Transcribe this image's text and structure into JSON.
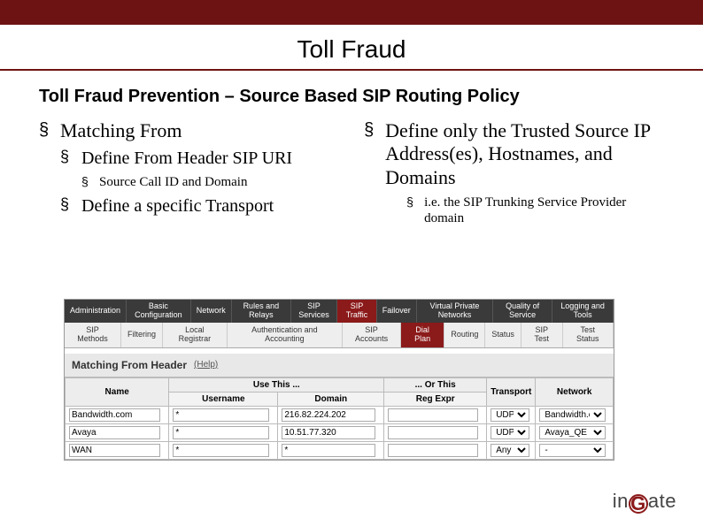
{
  "colors": {
    "brand_dark_red": "#6e1313",
    "tab_active": "#8b1a1a",
    "tab_bg": "#3a3a3a",
    "border": "#bbbbbb"
  },
  "title": "Toll Fraud",
  "subtitle": "Toll Fraud Prevention – Source Based SIP Routing Policy",
  "left": {
    "h1": "Matching From",
    "sub1": "Define From Header SIP URI",
    "sub1a": "Source Call ID and Domain",
    "sub2": "Define a specific Transport"
  },
  "right": {
    "h1": "Define only the Trusted Source IP Address(es), Hostnames, and Domains",
    "sub1": "i.e. the SIP Trunking Service Provider domain"
  },
  "tabs": [
    "Administration",
    "Basic Configuration",
    "Network",
    "Rules and Relays",
    "SIP Services",
    "SIP Traffic",
    "Failover",
    "Virtual Private Networks",
    "Quality of Service",
    "Logging and Tools"
  ],
  "active_tab_index": 5,
  "subtabs": [
    "SIP Methods",
    "Filtering",
    "Local Registrar",
    "Authentication and Accounting",
    "SIP Accounts",
    "Dial Plan",
    "Routing",
    "Status",
    "SIP Test",
    "Test Status"
  ],
  "active_subtab_index": 5,
  "section": {
    "title": "Matching From Header",
    "help": "(Help)"
  },
  "table": {
    "group_headers": {
      "use_this": "Use This ...",
      "or_this": "... Or This"
    },
    "columns": [
      "Name",
      "Username",
      "Domain",
      "Reg Expr",
      "Transport",
      "Network"
    ],
    "rows": [
      {
        "name": "Bandwidth.com",
        "user": "*",
        "domain": "216.82.224.202",
        "reg": "",
        "transport": "UDP",
        "network": "Bandwidth.com"
      },
      {
        "name": "Avaya",
        "user": "*",
        "domain": "10.51.77.320",
        "reg": "",
        "transport": "UDP",
        "network": "Avaya_QE"
      },
      {
        "name": "WAN",
        "user": "*",
        "domain": "*",
        "reg": "",
        "transport": "Any",
        "network": "-"
      }
    ]
  },
  "logo": {
    "prefix": "in",
    "g": "G",
    "suffix": "ate"
  }
}
